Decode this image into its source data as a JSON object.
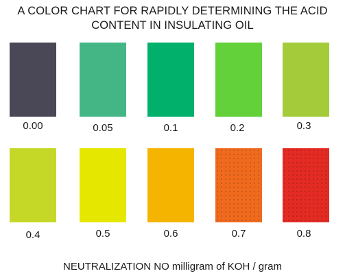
{
  "title_lines": [
    "A COLOR CHART FOR RAPIDLY DETERMINING THE ACID",
    "CONTENT IN INSULATING OIL"
  ],
  "swatches": [
    {
      "label": "0.00",
      "color": "#4a4857"
    },
    {
      "label": "0.05",
      "color": "#44b686"
    },
    {
      "label": "0.1",
      "color": "#00b06b"
    },
    {
      "label": "0.2",
      "color": "#62d13a"
    },
    {
      "label": "0.3",
      "color": "#a4cc3a"
    },
    {
      "label": "0.4",
      "color": "#c5d828"
    },
    {
      "label": "0.5",
      "color": "#e6e700"
    },
    {
      "label": "0.6",
      "color": "#f5b400"
    },
    {
      "label": "0.7",
      "color": "#f06a1e"
    },
    {
      "label": "0.8",
      "color": "#e32b23"
    }
  ],
  "footer": "NEUTRALIZATION NO milligram of KOH / gram"
}
